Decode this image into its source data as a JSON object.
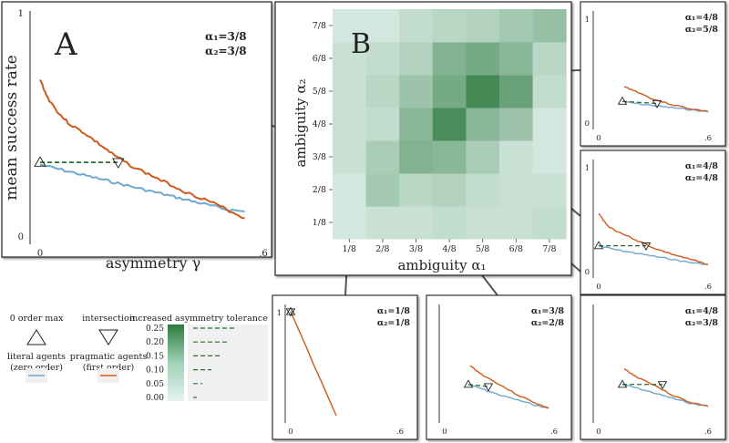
{
  "colors": {
    "literal": "#6fa8d0",
    "pragmatic": "#cf5a1c",
    "dashed": "#2f6b35",
    "heat_low": "#e6f4f1",
    "heat_high": "#2d7a3d"
  },
  "panel_a": {
    "letter": "A",
    "alpha1_label": "α₁=3/8",
    "alpha2_label": "α₂=3/8",
    "ylabel": "mean success rate",
    "xlabel": "asymmetry γ",
    "x_tick_labels": [
      "0",
      ".6"
    ],
    "y_tick_labels": [
      "0",
      "1"
    ]
  },
  "panel_b": {
    "letter": "B",
    "xlabel": "ambiguity α₁",
    "ylabel": "ambiguity α₂",
    "x_tick_labels": [
      "1/8",
      "2/8",
      "3/8",
      "4/8",
      "5/8",
      "6/8",
      "7/8"
    ],
    "y_tick_labels": [
      "1/8",
      "2/8",
      "3/8",
      "4/8",
      "5/8",
      "6/8",
      "7/8"
    ]
  },
  "legend": {
    "zero_order_label": "0 order max",
    "intersection_label": "intersection",
    "literal_label": "literal agents",
    "literal_sub": "(zero order)",
    "pragmatic_label": "pragmatic agents",
    "pragmatic_sub": "(first order)",
    "colorbar_title": "increased asymmetry tolerance",
    "colorbar_ticks": [
      "0.25",
      "0.20",
      "0.15",
      "0.10",
      "0.05",
      "0.00"
    ]
  },
  "chart_data": [
    {
      "type": "heatmap",
      "x_categories": [
        "1/8",
        "2/8",
        "3/8",
        "4/8",
        "5/8",
        "6/8",
        "7/8"
      ],
      "y_categories": [
        "1/8",
        "2/8",
        "3/8",
        "4/8",
        "5/8",
        "6/8",
        "7/8"
      ],
      "xlabel": "ambiguity α₁",
      "ylabel": "ambiguity α₂",
      "value_range": [
        0,
        0.27
      ],
      "values": [
        [
          0.02,
          0.03,
          0.03,
          0.04,
          0.03,
          0.03,
          0.04
        ],
        [
          0.02,
          0.08,
          0.05,
          0.06,
          0.04,
          0.03,
          0.03
        ],
        [
          0.03,
          0.07,
          0.13,
          0.12,
          0.07,
          0.03,
          0.02
        ],
        [
          0.03,
          0.04,
          0.12,
          0.22,
          0.12,
          0.09,
          0.02
        ],
        [
          0.03,
          0.05,
          0.09,
          0.15,
          0.23,
          0.17,
          0.04
        ],
        [
          0.03,
          0.04,
          0.06,
          0.13,
          0.15,
          0.12,
          0.05
        ],
        [
          0.02,
          0.02,
          0.04,
          0.05,
          0.06,
          0.08,
          0.1
        ]
      ]
    },
    {
      "type": "line",
      "panel": "A",
      "xlabel": "asymmetry γ",
      "ylabel": "mean success rate",
      "xlim": [
        0,
        0.6
      ],
      "ylim": [
        0,
        1
      ],
      "series": [
        {
          "name": "pragmatic agents",
          "x": [
            0,
            0.02,
            0.05,
            0.08,
            0.12,
            0.16,
            0.2,
            0.25,
            0.3,
            0.35,
            0.4,
            0.45,
            0.5,
            0.55
          ],
          "y": [
            0.7,
            0.62,
            0.55,
            0.5,
            0.46,
            0.41,
            0.36,
            0.31,
            0.27,
            0.23,
            0.19,
            0.16,
            0.12,
            0.08
          ]
        },
        {
          "name": "literal agents",
          "x": [
            0,
            0.05,
            0.1,
            0.15,
            0.2,
            0.25,
            0.3,
            0.35,
            0.4,
            0.45,
            0.5,
            0.55
          ],
          "y": [
            0.32,
            0.3,
            0.28,
            0.26,
            0.24,
            0.22,
            0.2,
            0.18,
            0.16,
            0.14,
            0.12,
            0.11
          ]
        }
      ],
      "zero_order_max": {
        "x": 0,
        "y": 0.33
      },
      "intersection": {
        "x": 0.21,
        "y": 0.33
      }
    },
    {
      "type": "line",
      "panel": "α1=4/8 α2=5/8",
      "alpha1_label": "α₁=4/8",
      "alpha2_label": "α₂=5/8",
      "x_tick_labels": [
        "0",
        ".6"
      ],
      "y_tick_labels": [
        "0",
        "1"
      ],
      "series": [
        {
          "name": "pragmatic agents",
          "x": [
            0.14,
            0.2,
            0.3,
            0.4,
            0.5,
            0.6
          ],
          "y": [
            0.34,
            0.3,
            0.22,
            0.17,
            0.13,
            0.1
          ]
        },
        {
          "name": "literal agents",
          "x": [
            0.13,
            0.2,
            0.3,
            0.4,
            0.5,
            0.6
          ],
          "y": [
            0.2,
            0.18,
            0.16,
            0.14,
            0.12,
            0.1
          ]
        }
      ],
      "zero_order_max": {
        "x": 0.13,
        "y": 0.2
      },
      "intersection": {
        "x": 0.32,
        "y": 0.18
      }
    },
    {
      "type": "line",
      "panel": "α1=4/8 α2=4/8",
      "alpha1_label": "α₁=4/8",
      "alpha2_label": "α₂=4/8",
      "x_tick_labels": [
        "0",
        ".6"
      ],
      "y_tick_labels": [
        "0",
        "1"
      ],
      "series": [
        {
          "name": "pragmatic agents",
          "x": [
            0,
            0.05,
            0.1,
            0.2,
            0.3,
            0.4,
            0.5,
            0.6
          ],
          "y": [
            0.55,
            0.43,
            0.38,
            0.3,
            0.22,
            0.16,
            0.11,
            0.06
          ]
        },
        {
          "name": "literal agents",
          "x": [
            0,
            0.1,
            0.2,
            0.3,
            0.4,
            0.5,
            0.6
          ],
          "y": [
            0.24,
            0.2,
            0.17,
            0.14,
            0.11,
            0.08,
            0.06
          ]
        }
      ],
      "zero_order_max": {
        "x": 0,
        "y": 0.24
      },
      "intersection": {
        "x": 0.26,
        "y": 0.24
      }
    },
    {
      "type": "line",
      "panel": "α1=1/8 α2=1/8",
      "alpha1_label": "α₁=1/8",
      "alpha2_label": "α₂=1/8",
      "x_tick_labels": [
        "0",
        ".6"
      ],
      "y_tick_labels": [
        "1"
      ],
      "series": [
        {
          "name": "pragmatic agents",
          "x": [
            0,
            0.25
          ],
          "y": [
            1,
            0
          ]
        },
        {
          "name": "literal agents",
          "x": [
            0,
            0.01
          ],
          "y": [
            1,
            1
          ]
        }
      ],
      "zero_order_max": {
        "x": 0,
        "y": 1
      },
      "intersection": {
        "x": 0,
        "y": 1
      }
    },
    {
      "type": "line",
      "panel": "α1=3/8 α2=2/8",
      "alpha1_label": "α₁=3/8",
      "alpha2_label": "α₂=2/8",
      "x_tick_labels": [
        "0",
        ".6"
      ],
      "series": [
        {
          "name": "pragmatic agents",
          "x": [
            0.14,
            0.2,
            0.3,
            0.4,
            0.5,
            0.57
          ],
          "y": [
            0.48,
            0.4,
            0.3,
            0.2,
            0.12,
            0.07
          ]
        },
        {
          "name": "literal agents",
          "x": [
            0.13,
            0.2,
            0.3,
            0.4,
            0.5,
            0.57
          ],
          "y": [
            0.3,
            0.26,
            0.2,
            0.15,
            0.1,
            0.07
          ]
        }
      ],
      "zero_order_max": {
        "x": 0.13,
        "y": 0.3
      },
      "intersection": {
        "x": 0.24,
        "y": 0.28
      }
    },
    {
      "type": "line",
      "panel": "α1=4/8 α2=3/8",
      "alpha1_label": "α₁=4/8",
      "alpha2_label": "α₂=3/8",
      "x_tick_labels": [
        "0",
        ".6"
      ],
      "series": [
        {
          "name": "pragmatic agents",
          "x": [
            0.14,
            0.2,
            0.3,
            0.4,
            0.5,
            0.6
          ],
          "y": [
            0.45,
            0.38,
            0.3,
            0.2,
            0.13,
            0.09
          ]
        },
        {
          "name": "literal agents",
          "x": [
            0.13,
            0.2,
            0.3,
            0.4,
            0.5,
            0.6
          ],
          "y": [
            0.3,
            0.27,
            0.22,
            0.17,
            0.12,
            0.09
          ]
        }
      ],
      "zero_order_max": {
        "x": 0.13,
        "y": 0.3
      },
      "intersection": {
        "x": 0.35,
        "y": 0.3
      }
    }
  ]
}
